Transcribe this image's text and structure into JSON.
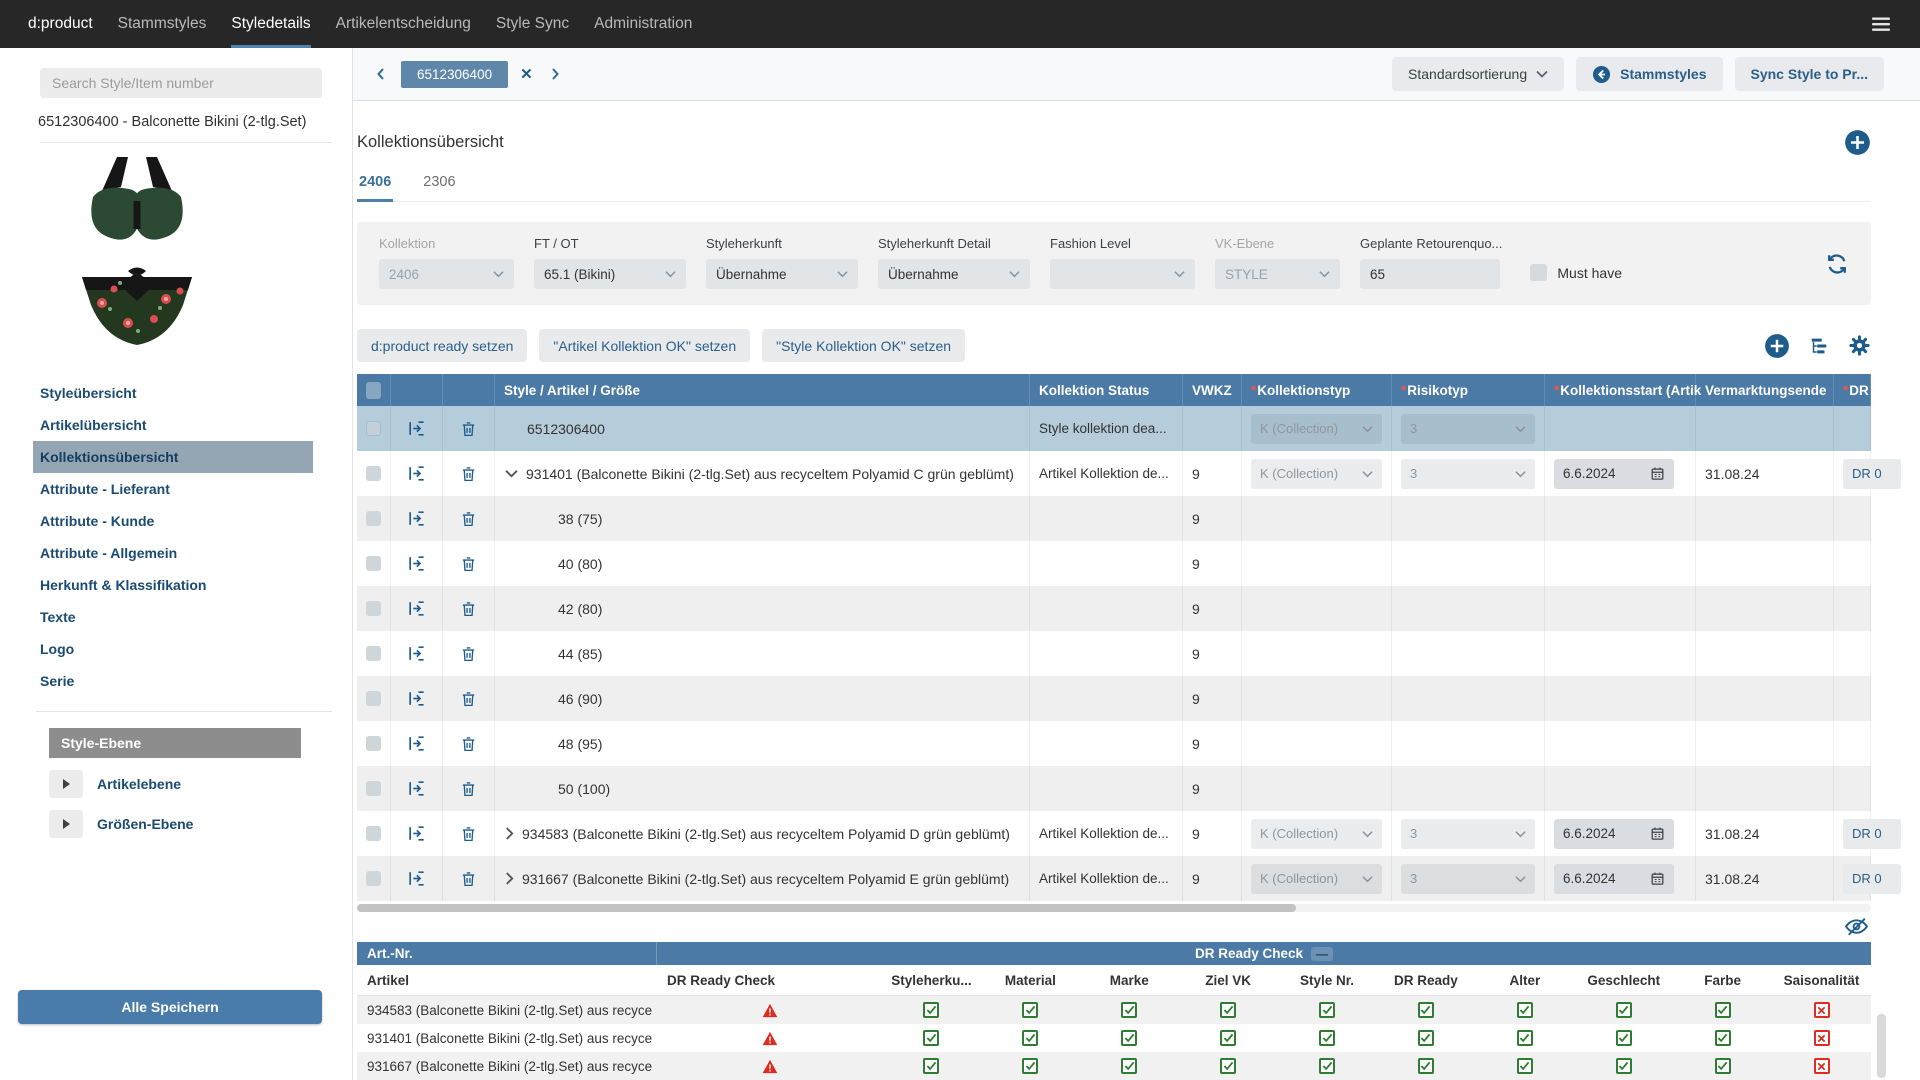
{
  "topnav": {
    "brand": "d:product",
    "items": [
      "Stammstyles",
      "Styledetails",
      "Artikelentscheidung",
      "Style Sync",
      "Administration"
    ],
    "active": "Styledetails"
  },
  "sidebar": {
    "search_placeholder": "Search Style/Item number",
    "product_title": "6512306400 - Balconette Bikini (2-tlg.Set)",
    "nav_items": [
      "Styleübersicht",
      "Artikelübersicht",
      "Kollektionsübersicht",
      "Attribute - Lieferant",
      "Attribute - Kunde",
      "Attribute - Allgemein",
      "Herkunft & Klassifikation",
      "Texte",
      "Logo",
      "Serie"
    ],
    "active_item": "Kollektionsübersicht",
    "level_header": "Style-Ebene",
    "level_items": [
      "Artikelebene",
      "Größen-Ebene"
    ],
    "save_all_label": "Alle Speichern"
  },
  "toolbar": {
    "style_chip": "6512306400",
    "sort_button": "Standardsortierung",
    "stammstyles_button": "Stammstyles",
    "sync_button": "Sync Style to Pr..."
  },
  "section": {
    "title": "Kollektionsübersicht",
    "tabs": [
      "2406",
      "2306"
    ],
    "active_tab": "2406"
  },
  "filters": {
    "fields": [
      {
        "label": "Kollektion",
        "value": "2406",
        "type": "select",
        "disabled": true,
        "width": 135
      },
      {
        "label": "FT / OT",
        "value": "65.1 (Bikini)",
        "type": "select",
        "disabled": false,
        "width": 152
      },
      {
        "label": "Styleherkunft",
        "value": "Übernahme",
        "type": "select",
        "disabled": false,
        "width": 152
      },
      {
        "label": "Styleherkunft Detail",
        "value": "Übernahme",
        "type": "select",
        "disabled": false,
        "width": 152
      },
      {
        "label": "Fashion Level",
        "value": "",
        "type": "select",
        "disabled": false,
        "width": 145
      },
      {
        "label": "VK-Ebene",
        "value": "STYLE",
        "type": "select",
        "disabled": true,
        "width": 125
      },
      {
        "label": "Geplante Retourenquo...",
        "value": "65",
        "type": "input",
        "disabled": false,
        "width": 140
      }
    ],
    "must_have_label": "Must have",
    "must_have_checked": false
  },
  "actions": [
    "d:product ready setzen",
    "\"Artikel Kollektion OK\" setzen",
    "\"Style Kollektion OK\" setzen"
  ],
  "table": {
    "columns": [
      {
        "label": "Style / Artikel / Größe",
        "required": false
      },
      {
        "label": "Kollektion Status",
        "required": false
      },
      {
        "label": "VWKZ",
        "required": false
      },
      {
        "label": "Kollektionstyp",
        "required": true
      },
      {
        "label": "Risikotyp",
        "required": true
      },
      {
        "label": "Kollektionsstart (Artik",
        "required": true
      },
      {
        "label": "Vermarktungsende",
        "required": false
      },
      {
        "label": "DR",
        "required": true
      }
    ],
    "rows": [
      {
        "kind": "style",
        "expand": null,
        "label": "6512306400",
        "status": "Style kollektion dea...",
        "vwkz": "",
        "typ": "K (Collection)",
        "risiko": "3",
        "start": "",
        "ende": "",
        "dr": ""
      },
      {
        "kind": "artikel",
        "expand": "down",
        "label": "931401 (Balconette Bikini (2-tlg.Set) aus recyceltem Polyamid C grün geblümt)",
        "status": "Artikel Kollektion de...",
        "vwkz": "9",
        "typ": "K (Collection)",
        "risiko": "3",
        "start": "6.6.2024",
        "ende": "31.08.24",
        "dr": "DR 0"
      },
      {
        "kind": "size",
        "expand": null,
        "label": "38 (75)",
        "status": "",
        "vwkz": "9",
        "typ": "",
        "risiko": "",
        "start": "",
        "ende": "",
        "dr": ""
      },
      {
        "kind": "size",
        "expand": null,
        "label": "40 (80)",
        "status": "",
        "vwkz": "9",
        "typ": "",
        "risiko": "",
        "start": "",
        "ende": "",
        "dr": ""
      },
      {
        "kind": "size",
        "expand": null,
        "label": "42 (80)",
        "status": "",
        "vwkz": "9",
        "typ": "",
        "risiko": "",
        "start": "",
        "ende": "",
        "dr": ""
      },
      {
        "kind": "size",
        "expand": null,
        "label": "44 (85)",
        "status": "",
        "vwkz": "9",
        "typ": "",
        "risiko": "",
        "start": "",
        "ende": "",
        "dr": ""
      },
      {
        "kind": "size",
        "expand": null,
        "label": "46 (90)",
        "status": "",
        "vwkz": "9",
        "typ": "",
        "risiko": "",
        "start": "",
        "ende": "",
        "dr": ""
      },
      {
        "kind": "size",
        "expand": null,
        "label": "48 (95)",
        "status": "",
        "vwkz": "9",
        "typ": "",
        "risiko": "",
        "start": "",
        "ende": "",
        "dr": ""
      },
      {
        "kind": "size",
        "expand": null,
        "label": "50 (100)",
        "status": "",
        "vwkz": "9",
        "typ": "",
        "risiko": "",
        "start": "",
        "ende": "",
        "dr": ""
      },
      {
        "kind": "artikel",
        "expand": "right",
        "label": "934583 (Balconette Bikini (2-tlg.Set) aus recyceltem Polyamid D grün geblümt)",
        "status": "Artikel Kollektion de...",
        "vwkz": "9",
        "typ": "K (Collection)",
        "risiko": "3",
        "start": "6.6.2024",
        "ende": "31.08.24",
        "dr": "DR 0"
      },
      {
        "kind": "artikel",
        "expand": "right",
        "label": "931667 (Balconette Bikini (2-tlg.Set) aus recyceltem Polyamid E grün geblümt)",
        "status": "Artikel Kollektion de...",
        "vwkz": "9",
        "typ": "K (Collection)",
        "risiko": "3",
        "start": "6.6.2024",
        "ende": "31.08.24",
        "dr": "DR 0"
      }
    ]
  },
  "dr_panel": {
    "group_left": "Art.-Nr.",
    "group_right": "DR Ready Check",
    "collapse_glyph": "—",
    "columns": [
      "Artikel",
      "DR Ready Check",
      "Styleherku...",
      "Material",
      "Marke",
      "Ziel VK",
      "Style Nr.",
      "DR Ready",
      "Alter",
      "Geschlecht",
      "Farbe",
      "Saisonalität"
    ],
    "rows": [
      {
        "artikel": "934583 (Balconette Bikini (2-tlg.Set) aus recyce",
        "dr_check": "warning",
        "checks": [
          "ok",
          "ok",
          "ok",
          "ok",
          "ok",
          "ok",
          "ok",
          "ok",
          "ok",
          "fail"
        ]
      },
      {
        "artikel": "931401 (Balconette Bikini (2-tlg.Set) aus recyce",
        "dr_check": "warning",
        "checks": [
          "ok",
          "ok",
          "ok",
          "ok",
          "ok",
          "ok",
          "ok",
          "ok",
          "ok",
          "fail"
        ]
      },
      {
        "artikel": "931667 (Balconette Bikini (2-tlg.Set) aus recyce",
        "dr_check": "warning",
        "checks": [
          "ok",
          "ok",
          "ok",
          "ok",
          "ok",
          "ok",
          "ok",
          "ok",
          "ok",
          "fail"
        ]
      }
    ]
  },
  "colors": {
    "accent_blue": "#1e5c8c",
    "steel_header": "#4b7aa6",
    "style_row_blue": "#b5ccdb",
    "sidebar_navy": "#1b4b72",
    "ok_green": "#2e7d32",
    "error_red": "#e02b20",
    "topnav_dark": "#272727"
  },
  "icons": {
    "menu-icon": "hamburger-lines",
    "chevron-left-icon": "‹",
    "chevron-right-icon": "›",
    "close-icon": "×",
    "chevron-down-icon": "⌄",
    "arrow-left-circle-icon": "←",
    "plus-circle-icon": "+",
    "tree-icon": "hierarchy-list",
    "gear-icon": "⚙",
    "refresh-icon": "⟳",
    "assign-icon": "arrow-into-list",
    "trash-icon": "🗑",
    "calendar-icon": "📅",
    "eye-off-icon": "eye-with-slash",
    "warning-icon": "red-triangle-exclamation",
    "check-icon": "✓",
    "cross-icon": "✕",
    "play-right-icon": "▶"
  }
}
